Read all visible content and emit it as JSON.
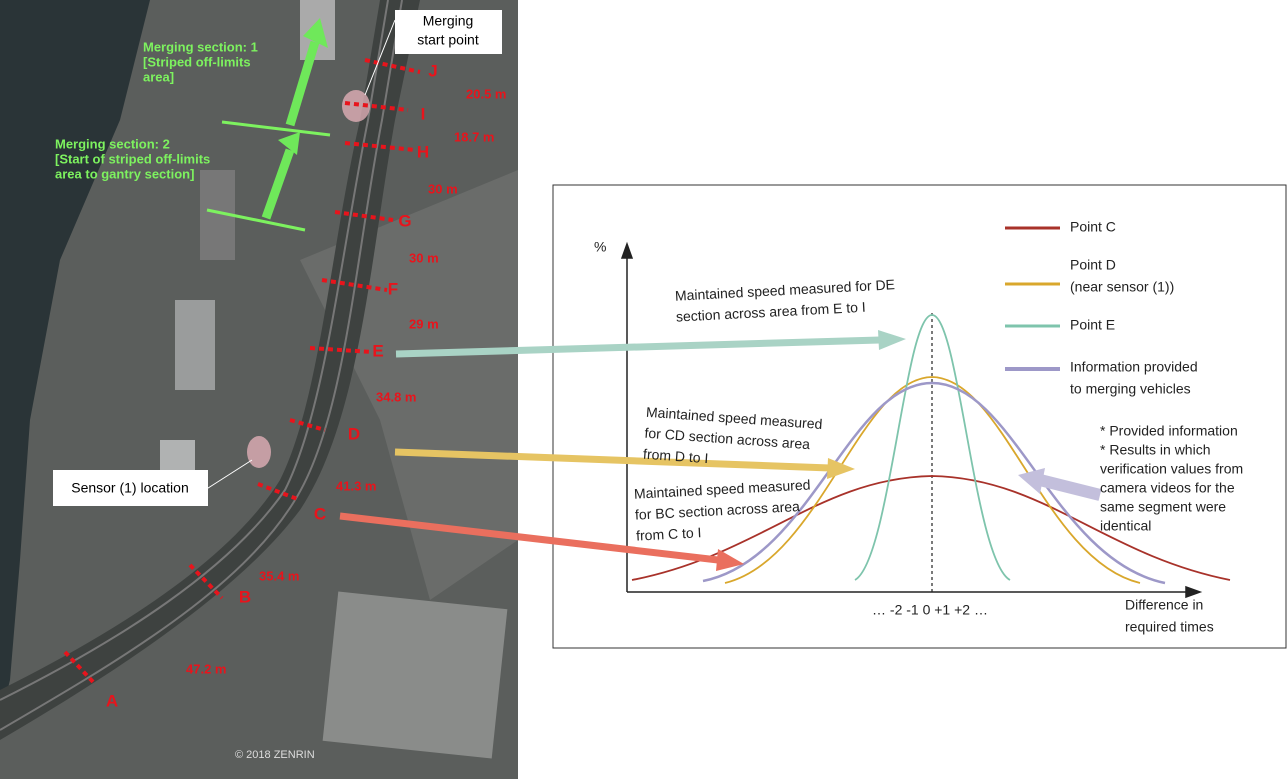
{
  "map": {
    "points": [
      "A",
      "B",
      "C",
      "D",
      "E",
      "F",
      "G",
      "H",
      "I",
      "J"
    ],
    "distances": [
      "47.2 m",
      "35.4 m",
      "41.3 m",
      "34.8 m",
      "29 m",
      "30 m",
      "30 m",
      "18.7 m",
      "20.5 m"
    ],
    "sections": [
      {
        "lines": [
          "Merging section: 1",
          "[Striped off-limits",
          "area]"
        ]
      },
      {
        "lines": [
          "Merging section: 2",
          "[Start of striped off-limits",
          "area to gantry section]"
        ]
      }
    ],
    "merging_start": [
      "Merging",
      "start point"
    ],
    "sensor": "Sensor (1) location",
    "copyright": "© 2018 ZENRIN"
  },
  "chart": {
    "y_axis_label": "%",
    "x_axis_label": [
      "Difference in",
      "required times"
    ],
    "x_ticks": "… -2 -1  0  +1 +2 …",
    "legend": [
      {
        "lines": [
          "Point C"
        ]
      },
      {
        "lines": [
          "Point D",
          "(near sensor (1))"
        ]
      },
      {
        "lines": [
          "Point E"
        ]
      },
      {
        "lines": [
          "Information provided",
          "to merging vehicles"
        ]
      }
    ],
    "annotations": [
      {
        "lines": [
          "Maintained speed measured for DE",
          "section across area from E to I"
        ]
      },
      {
        "lines": [
          "Maintained speed measured",
          "for CD section across area",
          "from D to I"
        ]
      },
      {
        "lines": [
          "Maintained speed measured",
          "for BC section across area",
          "from C to I"
        ]
      }
    ],
    "note": [
      "* Provided information",
      "* Results in which",
      "verification values from",
      "camera videos for the",
      "same segment were",
      "identical"
    ]
  }
}
